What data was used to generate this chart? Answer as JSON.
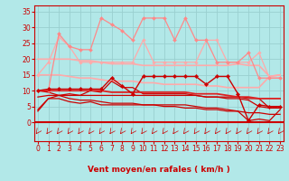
{
  "xlabel": "Vent moyen/en rafales ( km/h )",
  "x": [
    0,
    1,
    2,
    3,
    4,
    5,
    6,
    7,
    8,
    9,
    10,
    11,
    12,
    13,
    14,
    15,
    16,
    17,
    18,
    19,
    20,
    21,
    22,
    23
  ],
  "background_color": "#b2e8e8",
  "grid_color": "#9acfcf",
  "lines": [
    {
      "y": [
        10.0,
        10.0,
        28.0,
        24.0,
        23.0,
        23.0,
        33.0,
        31.0,
        29.0,
        26.0,
        33.0,
        33.0,
        33.0,
        26.0,
        33.0,
        26.0,
        26.0,
        19.0,
        19.0,
        19.0,
        22.0,
        14.0,
        14.0,
        14.0
      ],
      "color": "#ff8888",
      "lw": 0.9,
      "marker": "D",
      "ms": 2.0,
      "zorder": 5
    },
    {
      "y": [
        15.0,
        19.0,
        27.0,
        24.0,
        19.0,
        19.0,
        19.0,
        19.0,
        19.0,
        19.0,
        26.0,
        19.0,
        19.0,
        19.0,
        19.0,
        19.0,
        26.0,
        26.0,
        19.0,
        19.0,
        19.0,
        22.0,
        14.0,
        14.0
      ],
      "color": "#ffaaaa",
      "lw": 0.9,
      "marker": "D",
      "ms": 1.8,
      "zorder": 4
    },
    {
      "y": [
        20.0,
        20.0,
        20.0,
        20.0,
        19.5,
        19.5,
        19.0,
        18.5,
        18.5,
        18.5,
        18.0,
        18.0,
        18.0,
        18.0,
        18.0,
        18.0,
        18.0,
        18.0,
        18.0,
        18.5,
        18.0,
        18.0,
        14.5,
        15.0
      ],
      "color": "#ffaaaa",
      "lw": 1.2,
      "marker": null,
      "ms": 0,
      "zorder": 3
    },
    {
      "y": [
        15.0,
        15.0,
        15.0,
        14.5,
        14.0,
        14.0,
        13.5,
        13.0,
        13.0,
        13.0,
        12.5,
        12.5,
        12.0,
        12.0,
        12.0,
        12.0,
        11.5,
        11.5,
        11.0,
        11.0,
        11.0,
        11.0,
        14.5,
        15.0
      ],
      "color": "#ffaaaa",
      "lw": 1.2,
      "marker": null,
      "ms": 0,
      "zorder": 3
    },
    {
      "y": [
        10.0,
        10.5,
        10.5,
        10.5,
        10.5,
        10.5,
        10.5,
        14.0,
        11.5,
        9.0,
        14.5,
        14.5,
        14.5,
        14.5,
        14.5,
        14.5,
        12.0,
        14.5,
        14.5,
        9.0,
        0.5,
        5.5,
        5.0,
        5.0
      ],
      "color": "#cc0000",
      "lw": 1.0,
      "marker": "D",
      "ms": 2.2,
      "zorder": 6
    },
    {
      "y": [
        10.0,
        10.0,
        10.0,
        10.0,
        10.0,
        10.0,
        10.0,
        9.5,
        9.5,
        9.5,
        9.5,
        9.5,
        9.5,
        9.5,
        9.5,
        9.0,
        9.0,
        9.0,
        8.5,
        8.0,
        8.0,
        7.5,
        7.5,
        7.5
      ],
      "color": "#dd2222",
      "lw": 1.3,
      "marker": null,
      "ms": 0,
      "zorder": 5
    },
    {
      "y": [
        8.0,
        8.5,
        8.5,
        8.5,
        8.5,
        8.5,
        8.5,
        8.5,
        8.5,
        8.5,
        8.5,
        8.5,
        8.5,
        8.5,
        8.5,
        8.5,
        8.0,
        8.0,
        8.0,
        8.0,
        7.5,
        7.5,
        4.5,
        5.0
      ],
      "color": "#cc0000",
      "lw": 0.9,
      "marker": null,
      "ms": 0,
      "zorder": 4
    },
    {
      "y": [
        10.0,
        9.5,
        8.5,
        7.5,
        7.0,
        7.0,
        6.5,
        6.0,
        6.0,
        6.0,
        5.5,
        5.5,
        5.0,
        5.0,
        4.5,
        4.5,
        4.0,
        4.0,
        3.5,
        3.5,
        3.0,
        3.0,
        2.5,
        2.5
      ],
      "color": "#cc0000",
      "lw": 0.9,
      "marker": null,
      "ms": 0,
      "zorder": 4
    },
    {
      "y": [
        4.0,
        7.5,
        8.5,
        9.0,
        8.5,
        10.0,
        9.5,
        13.0,
        11.0,
        11.0,
        9.0,
        9.0,
        9.0,
        9.0,
        9.0,
        8.5,
        8.0,
        8.0,
        7.5,
        7.5,
        7.0,
        5.0,
        4.5,
        4.5
      ],
      "color": "#cc0000",
      "lw": 0.9,
      "marker": null,
      "ms": 0,
      "zorder": 4
    },
    {
      "y": [
        3.5,
        7.5,
        7.5,
        6.5,
        6.0,
        6.5,
        5.5,
        5.5,
        5.5,
        5.5,
        5.5,
        5.5,
        5.5,
        5.5,
        5.5,
        5.0,
        4.5,
        4.5,
        4.0,
        3.5,
        0.5,
        1.0,
        0.5,
        4.0
      ],
      "color": "#cc0000",
      "lw": 0.9,
      "marker": null,
      "ms": 0,
      "zorder": 4
    }
  ],
  "yticks": [
    0,
    5,
    10,
    15,
    20,
    25,
    30,
    35
  ],
  "xticks": [
    0,
    1,
    2,
    3,
    4,
    5,
    6,
    7,
    8,
    9,
    10,
    11,
    12,
    13,
    14,
    15,
    16,
    17,
    18,
    19,
    20,
    21,
    22,
    23
  ],
  "ylim": [
    -6,
    37
  ],
  "xlim": [
    -0.3,
    23.3
  ],
  "tick_color": "#cc0000",
  "spine_color": "#cc0000",
  "label_fontsize": 5.5,
  "xlabel_fontsize": 6.5
}
